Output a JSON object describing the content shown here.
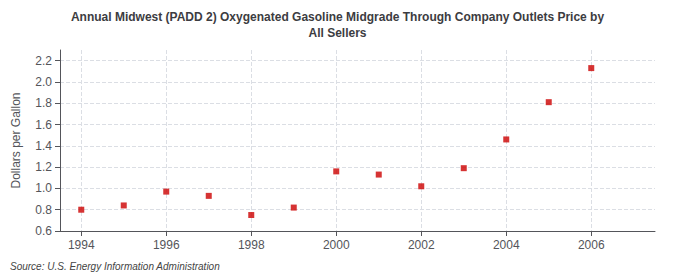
{
  "chart_data": {
    "type": "scatter",
    "title": "Annual Midwest (PADD 2) Oxygenated Gasoline Midgrade Through Company Outlets Price by\nAll Sellers",
    "ylabel": "Dollars per Gallon",
    "source": "Source: U.S. Energy Information Administration",
    "x": [
      1994,
      1995,
      1996,
      1997,
      1998,
      1999,
      2000,
      2001,
      2002,
      2003,
      2004,
      2005,
      2006
    ],
    "values": [
      0.8,
      0.84,
      0.97,
      0.93,
      0.75,
      0.82,
      1.16,
      1.13,
      1.02,
      1.19,
      1.46,
      1.81,
      2.13
    ],
    "color": "#cc0000",
    "marker": "square",
    "xlim": [
      1993.5,
      2007.5
    ],
    "xticks": [
      1994,
      1996,
      1998,
      2000,
      2002,
      2004,
      2006
    ],
    "ylim": [
      0.6,
      2.3
    ],
    "yticks": [
      0.6,
      0.8,
      {
        "value": 1.0,
        "label": "1.0"
      },
      1.2,
      1.4,
      1.6,
      1.8,
      {
        "value": 2.0,
        "label": "2.0"
      },
      2.2
    ],
    "grid": true
  }
}
